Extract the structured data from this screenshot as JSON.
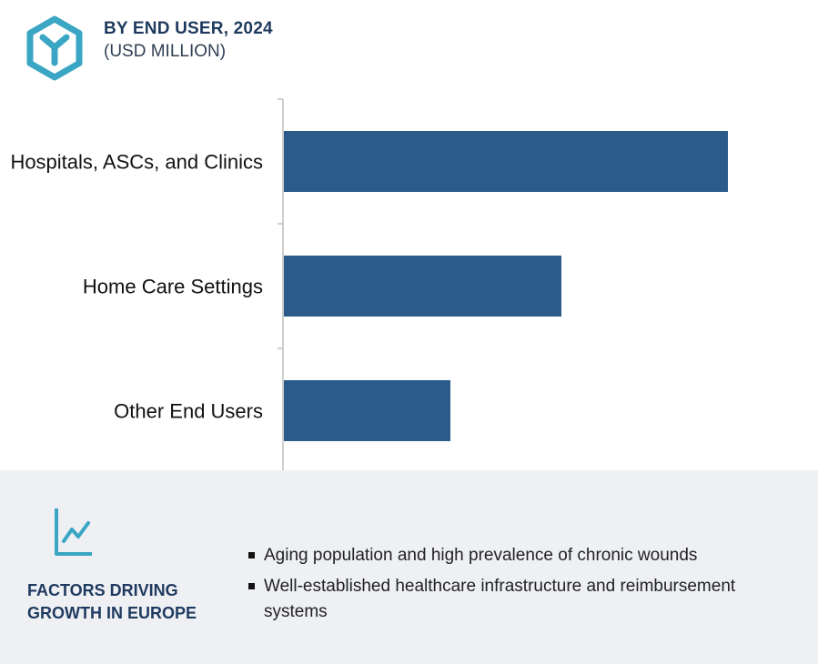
{
  "header": {
    "logo_icon": "hexagon-y-logo",
    "title": "BY END USER, 2024",
    "subtitle": "(USD MILLION)"
  },
  "chart_data": {
    "type": "bar",
    "orientation": "horizontal",
    "categories": [
      "Hospitals, ASCs, and Clinics",
      "Home Care Settings",
      "Other End Users"
    ],
    "values": [
      100,
      62.5,
      37.5
    ],
    "bar_color": "#2a5b8a",
    "axis_color": "#bfbfbf",
    "grid": false,
    "value_labels_shown": false
  },
  "factors": {
    "icon": "trend-chart-icon",
    "heading": "FACTORS DRIVING GROWTH IN EUROPE",
    "bullets": [
      "Aging population and high prevalence of chronic wounds",
      "Well-established healthcare infrastructure and reimbursement systems"
    ]
  },
  "colors": {
    "accent": "#3aa6c4",
    "heading": "#1f3a5f",
    "panel_background": "#eef0f4"
  }
}
